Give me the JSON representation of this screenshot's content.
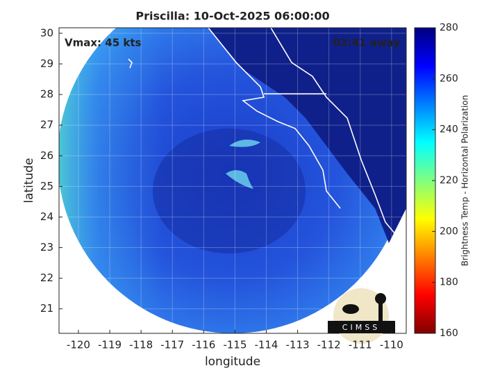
{
  "map": {
    "title": "Priscilla: 10-Oct-2025 06:00:00",
    "annotations": {
      "left": "Vmax: 45 kts",
      "right": "03:41 away"
    },
    "xlabel": "longitude",
    "ylabel": "latitude",
    "xlim": [
      -120.62,
      -109.53
    ],
    "ylim": [
      20.2,
      30.18
    ],
    "xticks": [
      -120,
      -119,
      -118,
      -117,
      -116,
      -115,
      -114,
      -113,
      -112,
      -111,
      -110
    ],
    "yticks": [
      21,
      22,
      23,
      24,
      25,
      26,
      27,
      28,
      29,
      30
    ],
    "grid": true,
    "colorbar": {
      "label": "Brightness Temp - Horizontal Polarization",
      "lim": [
        160,
        280
      ],
      "ticks": [
        160,
        180,
        200,
        220,
        240,
        260,
        280
      ]
    },
    "logo": "CIMSS"
  }
}
